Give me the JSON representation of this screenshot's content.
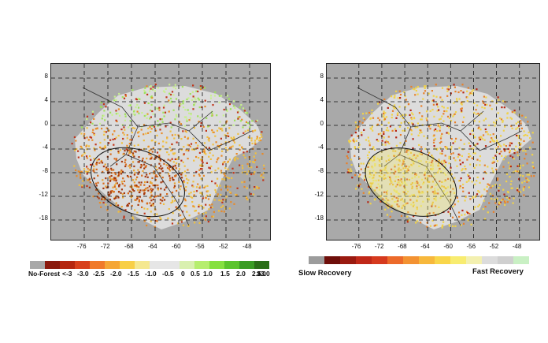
{
  "left_panel": {
    "lat_ticks": [
      "8",
      "4",
      "0",
      "-4",
      "-8",
      "-12",
      "-18"
    ],
    "lon_ticks": [
      "-76",
      "-72",
      "-68",
      "-64",
      "-60",
      "-56",
      "-52",
      "-48"
    ],
    "legend": {
      "labels": [
        "No-Forest",
        "<-3",
        "-3.0",
        "-2.5",
        "-2.0",
        "-1.5",
        "-1.0",
        "-0.5",
        "0",
        "0.5",
        "1.0",
        "1.5",
        "2.0",
        "2.5",
        "3.0",
        ">3.0"
      ],
      "colors": [
        "#a8a8a8",
        "#8b1a0e",
        "#b5260f",
        "#d8401c",
        "#f07a2a",
        "#f5a636",
        "#f8cf46",
        "#f5e890",
        "#e6e6e6",
        "#e6e6e6",
        "#d9f0b0",
        "#b6ee6e",
        "#86e040",
        "#5bc42c",
        "#3a9c24",
        "#2a6e18"
      ]
    }
  },
  "right_panel": {
    "lat_ticks": [
      "8",
      "4",
      "0",
      "-4",
      "-8",
      "-12",
      "-18"
    ],
    "lon_ticks": [
      "-76",
      "-72",
      "-68",
      "-64",
      "-60",
      "-56",
      "-52",
      "-48"
    ],
    "legend": {
      "left_label": "Slow Recovery",
      "right_label": "Fast Recovery",
      "colors": [
        "#9c9c9c",
        "#6e0e0a",
        "#9a1a10",
        "#c02818",
        "#d63a1e",
        "#ec6a2a",
        "#f39232",
        "#f7b83c",
        "#f9d64a",
        "#f8ec70",
        "#f3f0b0",
        "#dcdcdc",
        "#cfcfcf",
        "#c9f0c4"
      ]
    }
  }
}
